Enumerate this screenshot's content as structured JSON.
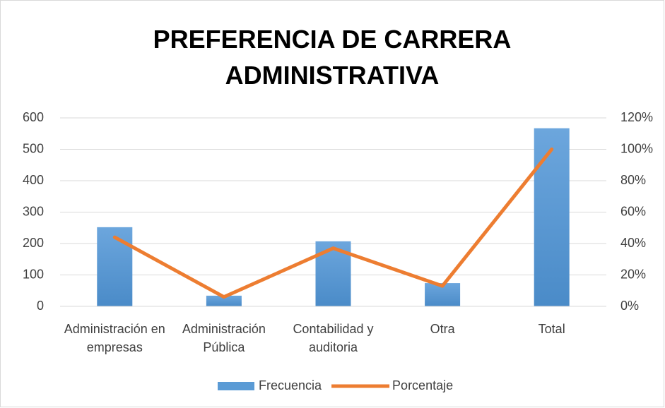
{
  "chart_data": {
    "type": "bar",
    "title": "PREFERENCIA DE CARRERA ADMINISTRATIVA",
    "categories": [
      "Administración en empresas",
      "Administración Pública",
      "Contabilidad y auditoria",
      "Otra",
      "Total"
    ],
    "series": [
      {
        "name": "Frecuencia",
        "type": "bar",
        "color": "#5b9bd5",
        "values": [
          252,
          34,
          207,
          74,
          567
        ]
      },
      {
        "name": "Porcentaje",
        "type": "line",
        "color": "#ed7d31",
        "axis": "y2",
        "values": [
          44,
          6,
          37,
          13,
          100
        ]
      }
    ],
    "ylim": [
      0,
      600
    ],
    "yticks": [
      0,
      100,
      200,
      300,
      400,
      500,
      600
    ],
    "y2lim": [
      0,
      120
    ],
    "y2ticks": [
      {
        "value": 0,
        "label": "0%"
      },
      {
        "value": 20,
        "label": "20%"
      },
      {
        "value": 40,
        "label": "40%"
      },
      {
        "value": 60,
        "label": "60%"
      },
      {
        "value": 80,
        "label": "80%"
      },
      {
        "value": 100,
        "label": "100%"
      },
      {
        "value": 120,
        "label": "120%"
      }
    ],
    "grid": true,
    "legend": "bottom"
  }
}
